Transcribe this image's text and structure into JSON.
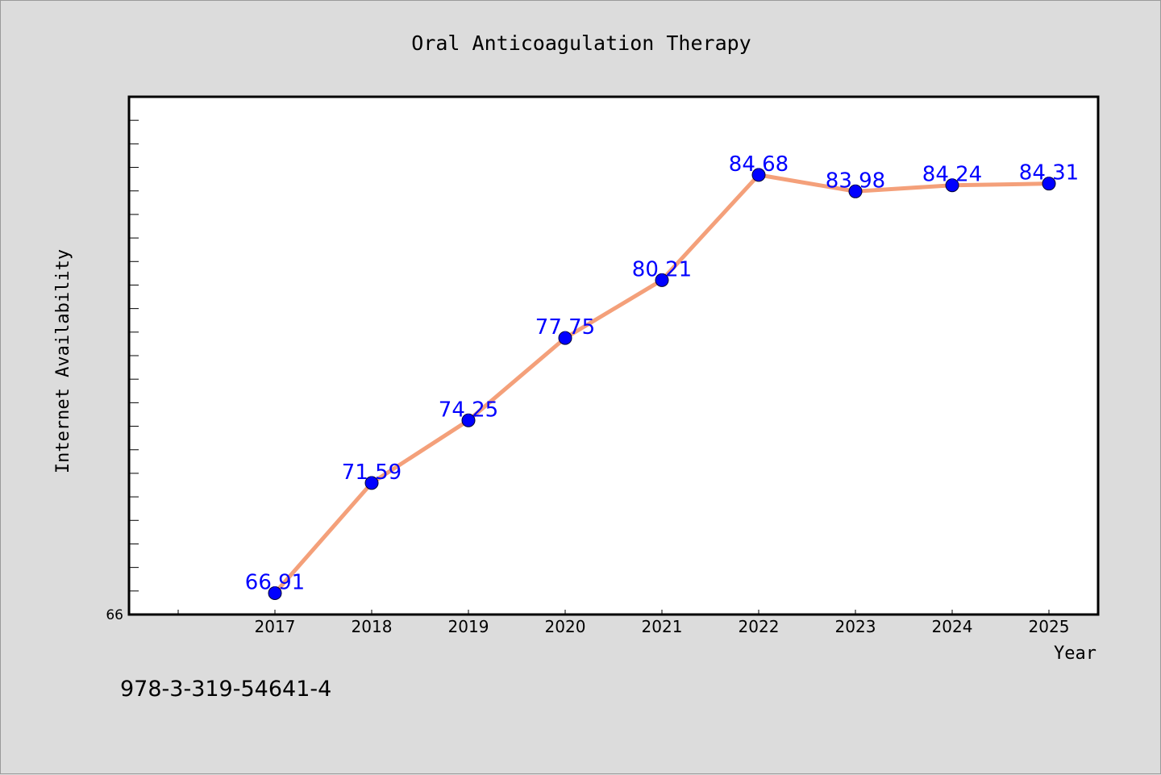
{
  "chart_data": {
    "type": "line",
    "title": "Oral Anticoagulation Therapy",
    "xlabel": "Year",
    "ylabel": "Internet Availability",
    "ylim": [
      66,
      88
    ],
    "y_tick_labels": [
      "66"
    ],
    "grid": false,
    "series": [
      {
        "x": [
          2017,
          2018,
          2019,
          2020,
          2021,
          2022,
          2023,
          2024,
          2025
        ],
        "values": [
          66.91,
          71.59,
          74.25,
          77.75,
          80.21,
          84.68,
          83.98,
          84.24,
          84.31
        ],
        "data_labels": [
          "66.91",
          "71.59",
          "74.25",
          "77.75",
          "80.21",
          "84.68",
          "83.98",
          "84.24",
          "84.31"
        ]
      }
    ],
    "colors": {
      "line": "#f4a07a",
      "marker": "#0000ff",
      "data_label": "#0000ff",
      "plot_background": "#ffffff",
      "figure_background": "#dcdcdc"
    }
  },
  "footer_text": "978-3-319-54641-4"
}
